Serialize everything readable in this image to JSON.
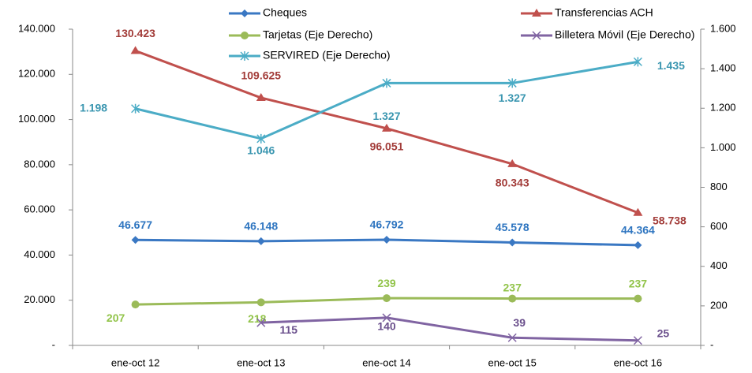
{
  "chart_data": {
    "type": "line",
    "categories": [
      "ene-oct 12",
      "ene-oct 13",
      "ene-oct 14",
      "ene-oct 15",
      "ene-oct 16"
    ],
    "ylim": [
      0,
      140000
    ],
    "yticks": [
      {
        "value": 0,
        "label": "-"
      },
      {
        "value": 20000,
        "label": "20.000"
      },
      {
        "value": 40000,
        "label": "40.000"
      },
      {
        "value": 60000,
        "label": "60.000"
      },
      {
        "value": 80000,
        "label": "80.000"
      },
      {
        "value": 100000,
        "label": "100.000"
      },
      {
        "value": 120000,
        "label": "120.000"
      },
      {
        "value": 140000,
        "label": "140.000"
      }
    ],
    "y2lim": [
      0,
      1600
    ],
    "y2ticks": [
      {
        "value": 0,
        "label": "-"
      },
      200,
      400,
      600,
      800,
      {
        "value": 1000,
        "label": "1.000"
      },
      {
        "value": 1200,
        "label": "1.200"
      },
      {
        "value": 1400,
        "label": "1.400"
      },
      {
        "value": 1600,
        "label": "1.600"
      }
    ],
    "grid": false,
    "series": [
      {
        "name": "Cheques",
        "color": "#3a78c3",
        "label_color": "#2e75c0",
        "marker": "diamond",
        "values": [
          46677,
          46148,
          46792,
          45578,
          44364
        ],
        "value_labels": [
          "46.677",
          "46.148",
          "46.792",
          "45.578",
          "44.364"
        ]
      },
      {
        "name": "Transferencias ACH",
        "color": "#c0504d",
        "label_color": "#a23b38",
        "marker": "triangle",
        "values": [
          130423,
          109625,
          96051,
          80343,
          58738
        ],
        "value_labels": [
          "130.423",
          "109.625",
          "96.051",
          "80.343",
          "58.738"
        ]
      },
      {
        "name": "Tarjetas (Eje Derecho)",
        "color": "#9bbb59",
        "label_color": "#92c44a",
        "marker": "circle",
        "axis": "y2",
        "values": [
          207,
          218,
          239,
          237,
          237
        ],
        "value_labels": [
          "207",
          "218",
          "239",
          "237",
          "237"
        ]
      },
      {
        "name": "Billetera Móvil (Eje Derecho)",
        "color": "#8064a2",
        "label_color": "#6a4f8c",
        "marker": "x",
        "axis": "y2",
        "values": [
          null,
          115,
          140,
          39,
          25
        ],
        "value_labels": [
          null,
          "115",
          "140",
          "39",
          "25"
        ]
      },
      {
        "name": "SERVIRED (Eje Derecho)",
        "color": "#4bacc6",
        "label_color": "#3a96b0",
        "marker": "star",
        "axis": "y2",
        "values": [
          1198,
          1046,
          1327,
          1327,
          1435
        ],
        "value_labels": [
          "1.198",
          "1.046",
          "1.327",
          "1.327",
          "1.435"
        ]
      }
    ]
  }
}
